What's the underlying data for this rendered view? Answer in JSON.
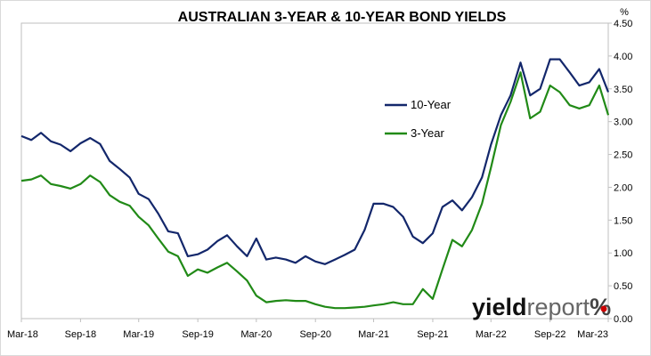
{
  "chart_data": {
    "type": "line",
    "title": "AUSTRALIAN 3-YEAR & 10-YEAR BOND YIELDS",
    "y_unit": "%",
    "y_axis_position": "right",
    "ylim": [
      0,
      4.5
    ],
    "y_ticks": [
      "0.00",
      "0.50",
      "1.00",
      "1.50",
      "2.00",
      "2.50",
      "3.00",
      "3.50",
      "4.00",
      "4.50"
    ],
    "x_ticks": [
      "Mar-18",
      "Sep-18",
      "Mar-19",
      "Sep-19",
      "Mar-20",
      "Sep-20",
      "Mar-21",
      "Sep-21",
      "Mar-22",
      "Sep-22",
      "Mar-23"
    ],
    "grid": false,
    "legend_position": "center-right",
    "series": [
      {
        "name": "10-Year",
        "color": "#13276b",
        "points": [
          [
            "2018-03-01",
            2.78
          ],
          [
            "2018-04-01",
            2.72
          ],
          [
            "2018-05-01",
            2.83
          ],
          [
            "2018-06-01",
            2.7
          ],
          [
            "2018-07-01",
            2.65
          ],
          [
            "2018-08-01",
            2.55
          ],
          [
            "2018-09-01",
            2.67
          ],
          [
            "2018-10-01",
            2.75
          ],
          [
            "2018-11-01",
            2.66
          ],
          [
            "2018-12-01",
            2.4
          ],
          [
            "2019-01-01",
            2.28
          ],
          [
            "2019-02-01",
            2.15
          ],
          [
            "2019-03-01",
            1.9
          ],
          [
            "2019-04-01",
            1.82
          ],
          [
            "2019-05-01",
            1.6
          ],
          [
            "2019-06-01",
            1.33
          ],
          [
            "2019-07-01",
            1.3
          ],
          [
            "2019-08-01",
            0.95
          ],
          [
            "2019-09-01",
            0.98
          ],
          [
            "2019-10-01",
            1.05
          ],
          [
            "2019-11-01",
            1.18
          ],
          [
            "2019-12-01",
            1.27
          ],
          [
            "2020-01-01",
            1.1
          ],
          [
            "2020-02-01",
            0.95
          ],
          [
            "2020-03-01",
            1.22
          ],
          [
            "2020-04-01",
            0.9
          ],
          [
            "2020-05-01",
            0.93
          ],
          [
            "2020-06-01",
            0.9
          ],
          [
            "2020-07-01",
            0.85
          ],
          [
            "2020-08-01",
            0.95
          ],
          [
            "2020-09-01",
            0.87
          ],
          [
            "2020-10-01",
            0.83
          ],
          [
            "2020-11-01",
            0.9
          ],
          [
            "2020-12-01",
            0.97
          ],
          [
            "2021-01-01",
            1.05
          ],
          [
            "2021-02-01",
            1.35
          ],
          [
            "2021-03-01",
            1.75
          ],
          [
            "2021-04-01",
            1.75
          ],
          [
            "2021-05-01",
            1.7
          ],
          [
            "2021-06-01",
            1.55
          ],
          [
            "2021-07-01",
            1.25
          ],
          [
            "2021-08-01",
            1.15
          ],
          [
            "2021-09-01",
            1.3
          ],
          [
            "2021-10-01",
            1.7
          ],
          [
            "2021-11-01",
            1.8
          ],
          [
            "2021-12-01",
            1.65
          ],
          [
            "2022-01-01",
            1.85
          ],
          [
            "2022-02-01",
            2.15
          ],
          [
            "2022-03-01",
            2.65
          ],
          [
            "2022-04-01",
            3.1
          ],
          [
            "2022-05-01",
            3.4
          ],
          [
            "2022-06-01",
            3.9
          ],
          [
            "2022-07-01",
            3.4
          ],
          [
            "2022-08-01",
            3.5
          ],
          [
            "2022-09-01",
            3.95
          ],
          [
            "2022-10-01",
            3.95
          ],
          [
            "2022-11-01",
            3.75
          ],
          [
            "2022-12-01",
            3.55
          ],
          [
            "2023-01-01",
            3.6
          ],
          [
            "2023-02-01",
            3.8
          ],
          [
            "2023-03-01",
            3.45
          ]
        ]
      },
      {
        "name": "3-Year",
        "color": "#218a17",
        "points": [
          [
            "2018-03-01",
            2.1
          ],
          [
            "2018-04-01",
            2.12
          ],
          [
            "2018-05-01",
            2.18
          ],
          [
            "2018-06-01",
            2.05
          ],
          [
            "2018-07-01",
            2.02
          ],
          [
            "2018-08-01",
            1.98
          ],
          [
            "2018-09-01",
            2.05
          ],
          [
            "2018-10-01",
            2.18
          ],
          [
            "2018-11-01",
            2.08
          ],
          [
            "2018-12-01",
            1.88
          ],
          [
            "2019-01-01",
            1.78
          ],
          [
            "2019-02-01",
            1.72
          ],
          [
            "2019-03-01",
            1.55
          ],
          [
            "2019-04-01",
            1.42
          ],
          [
            "2019-05-01",
            1.22
          ],
          [
            "2019-06-01",
            1.02
          ],
          [
            "2019-07-01",
            0.95
          ],
          [
            "2019-08-01",
            0.65
          ],
          [
            "2019-09-01",
            0.75
          ],
          [
            "2019-10-01",
            0.7
          ],
          [
            "2019-11-01",
            0.78
          ],
          [
            "2019-12-01",
            0.85
          ],
          [
            "2020-01-01",
            0.72
          ],
          [
            "2020-02-01",
            0.58
          ],
          [
            "2020-03-01",
            0.35
          ],
          [
            "2020-04-01",
            0.25
          ],
          [
            "2020-05-01",
            0.27
          ],
          [
            "2020-06-01",
            0.28
          ],
          [
            "2020-07-01",
            0.27
          ],
          [
            "2020-08-01",
            0.27
          ],
          [
            "2020-09-01",
            0.22
          ],
          [
            "2020-10-01",
            0.18
          ],
          [
            "2020-11-01",
            0.16
          ],
          [
            "2020-12-01",
            0.16
          ],
          [
            "2021-01-01",
            0.17
          ],
          [
            "2021-02-01",
            0.18
          ],
          [
            "2021-03-01",
            0.2
          ],
          [
            "2021-04-01",
            0.22
          ],
          [
            "2021-05-01",
            0.25
          ],
          [
            "2021-06-01",
            0.22
          ],
          [
            "2021-07-01",
            0.22
          ],
          [
            "2021-08-01",
            0.45
          ],
          [
            "2021-09-01",
            0.3
          ],
          [
            "2021-10-01",
            0.75
          ],
          [
            "2021-11-01",
            1.2
          ],
          [
            "2021-12-01",
            1.1
          ],
          [
            "2022-01-01",
            1.35
          ],
          [
            "2022-02-01",
            1.75
          ],
          [
            "2022-03-01",
            2.3
          ],
          [
            "2022-04-01",
            2.95
          ],
          [
            "2022-05-01",
            3.3
          ],
          [
            "2022-06-01",
            3.75
          ],
          [
            "2022-07-01",
            3.05
          ],
          [
            "2022-08-01",
            3.15
          ],
          [
            "2022-09-01",
            3.55
          ],
          [
            "2022-10-01",
            3.45
          ],
          [
            "2022-11-01",
            3.25
          ],
          [
            "2022-12-01",
            3.2
          ],
          [
            "2023-01-01",
            3.25
          ],
          [
            "2023-02-01",
            3.55
          ],
          [
            "2023-03-01",
            3.1
          ]
        ]
      }
    ]
  },
  "watermark": {
    "main": "yield",
    "report": "report",
    "pct": "%",
    "accent_color": "#cc0000"
  }
}
